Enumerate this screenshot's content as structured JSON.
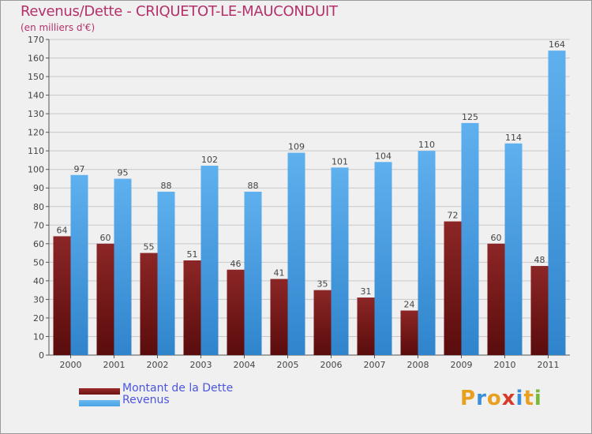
{
  "header": {
    "title": "Revenus/Dette - CRIQUETOT-LE-MAUCONDUIT",
    "subtitle": "(en milliers d'€)"
  },
  "legend": {
    "dette_label": "Montant de la Dette",
    "revenus_label": "Revenus"
  },
  "logo": {
    "text": "Proxiti"
  },
  "colors": {
    "dette": "#6e1414",
    "revenus": "#4aa3e6",
    "title": "#b4306a",
    "legend_text": "#4d55e0",
    "background": "#f0f0f0",
    "grid": "#c8c8c8"
  },
  "chart_data": {
    "type": "bar",
    "categories": [
      "2000",
      "2001",
      "2002",
      "2003",
      "2004",
      "2005",
      "2006",
      "2007",
      "2008",
      "2009",
      "2010",
      "2011"
    ],
    "series": [
      {
        "name": "Montant de la Dette",
        "values": [
          64,
          60,
          55,
          51,
          46,
          41,
          35,
          31,
          24,
          72,
          60,
          48
        ]
      },
      {
        "name": "Revenus",
        "values": [
          97,
          95,
          88,
          102,
          88,
          109,
          101,
          104,
          110,
          125,
          114,
          164
        ]
      }
    ],
    "title": "Revenus/Dette - CRIQUETOT-LE-MAUCONDUIT",
    "ylabel": "(en milliers d'€)",
    "ylim": [
      0,
      170
    ],
    "yticks": [
      0,
      10,
      20,
      30,
      40,
      50,
      60,
      70,
      80,
      90,
      100,
      110,
      120,
      130,
      140,
      150,
      160,
      170
    ],
    "grid": true,
    "legend_position": "bottom-left"
  }
}
